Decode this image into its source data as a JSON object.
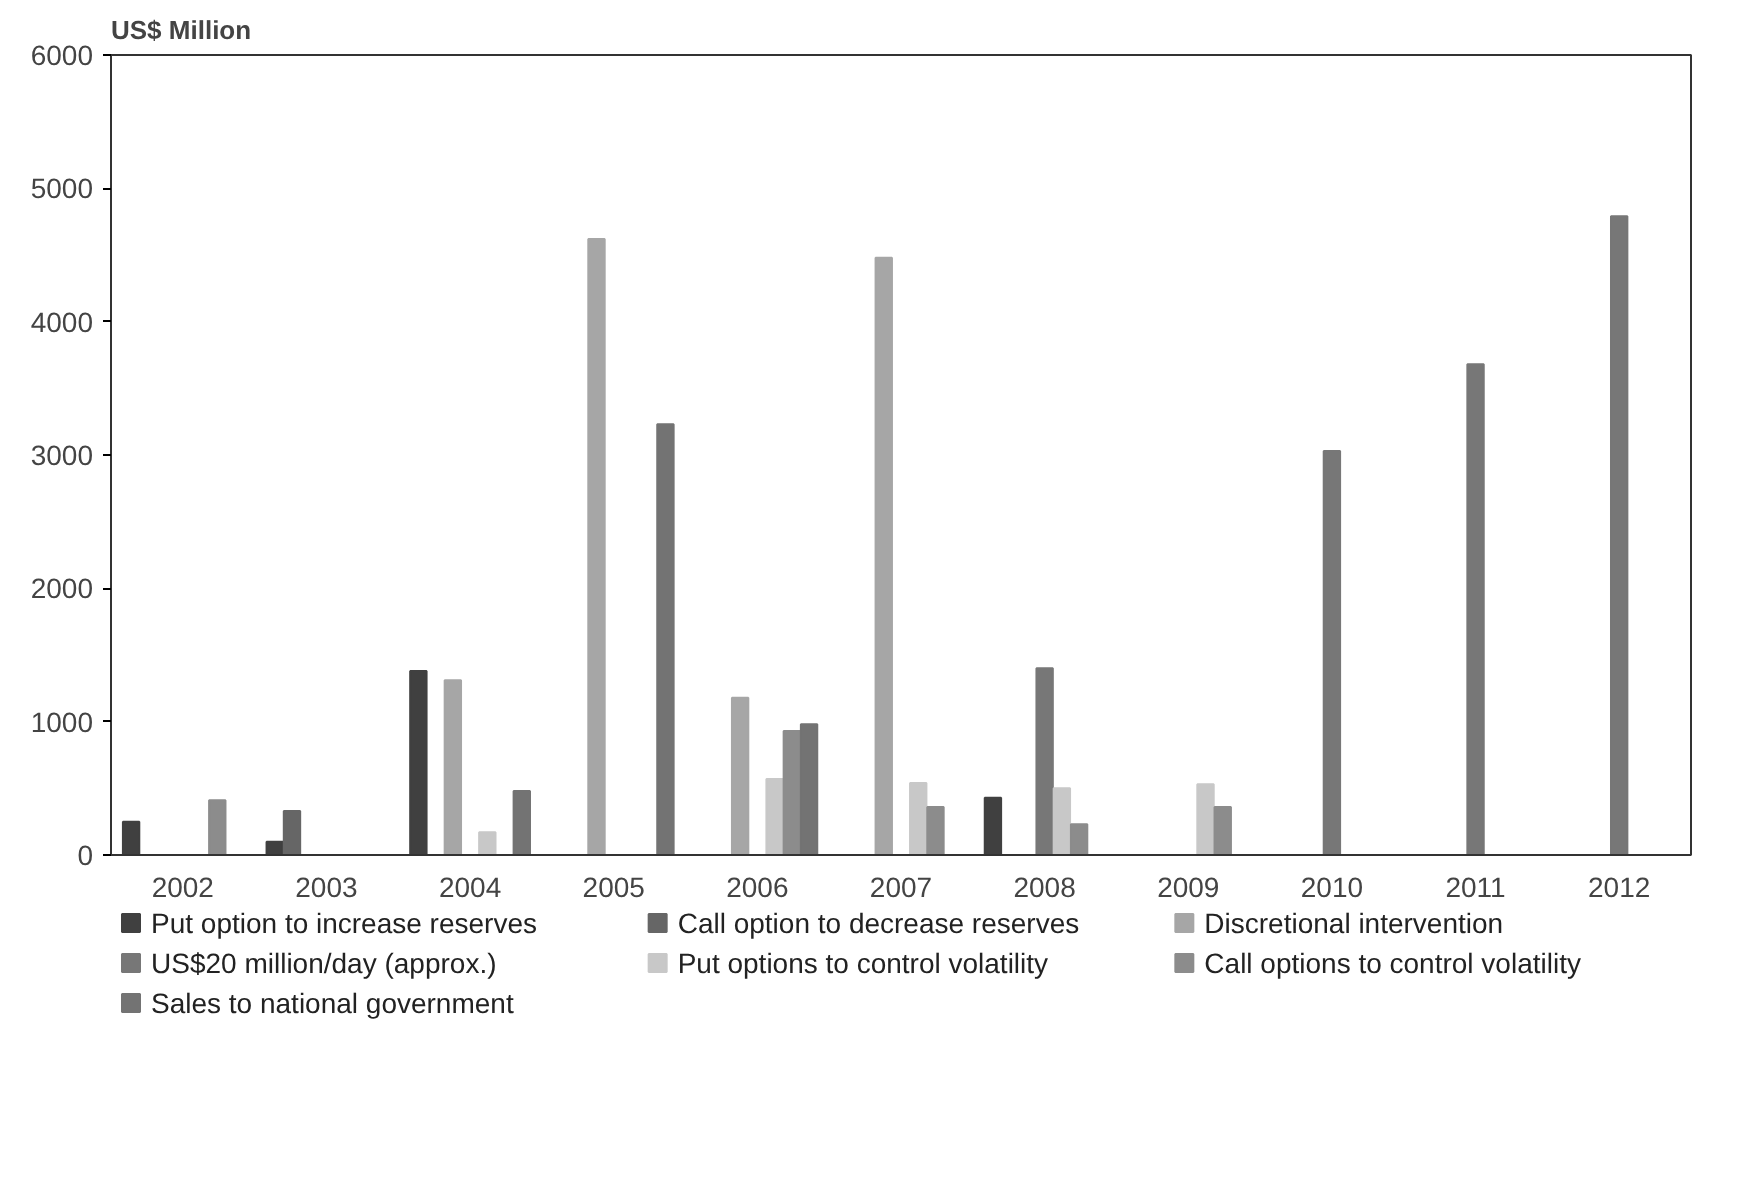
{
  "chart_data": {
    "type": "bar",
    "ylabel": "US$ Million",
    "categories": [
      "2002",
      "2003",
      "2004",
      "2005",
      "2006",
      "2007",
      "2008",
      "2009",
      "2010",
      "2011",
      "2012"
    ],
    "ylim": [
      0,
      6000
    ],
    "yticks": [
      0,
      1000,
      2000,
      3000,
      4000,
      5000,
      6000
    ],
    "grid": false,
    "legend": "bottom",
    "series": [
      {
        "name": "Put option to increase reserves",
        "color": "#404040",
        "values": [
          250,
          100,
          1380,
          null,
          null,
          null,
          430,
          null,
          null,
          null,
          null
        ]
      },
      {
        "name": "Call option to decrease reserves",
        "color": "#666666",
        "values": [
          null,
          330,
          null,
          null,
          null,
          null,
          null,
          null,
          null,
          null,
          null
        ]
      },
      {
        "name": "Discretional intervention",
        "color": "#a6a6a6",
        "values": [
          null,
          null,
          1310,
          4620,
          1180,
          4480,
          null,
          null,
          null,
          null,
          null
        ]
      },
      {
        "name": "US$20 million/day (approx.)",
        "color": "#777777",
        "values": [
          null,
          null,
          null,
          null,
          null,
          null,
          1400,
          null,
          3030,
          3680,
          4790
        ]
      },
      {
        "name": "Put options to control volatility",
        "color": "#c8c8c8",
        "values": [
          null,
          null,
          170,
          null,
          570,
          540,
          500,
          530,
          null,
          null,
          null
        ]
      },
      {
        "name": "Call options to control volatility",
        "color": "#8c8c8c",
        "values": [
          410,
          null,
          null,
          null,
          930,
          360,
          230,
          360,
          null,
          null,
          null
        ]
      },
      {
        "name": "Sales to national government",
        "color": "#737373",
        "values": [
          null,
          null,
          480,
          3230,
          980,
          null,
          null,
          null,
          null,
          null,
          null
        ]
      }
    ]
  }
}
